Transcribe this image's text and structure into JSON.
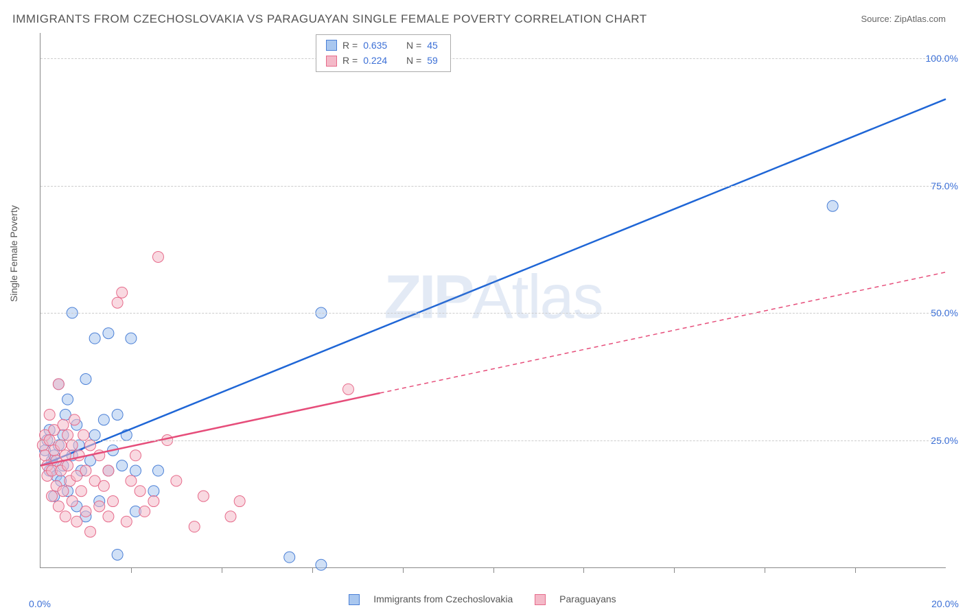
{
  "title": "IMMIGRANTS FROM CZECHOSLOVAKIA VS PARAGUAYAN SINGLE FEMALE POVERTY CORRELATION CHART",
  "source": "Source: ZipAtlas.com",
  "ylabel": "Single Female Poverty",
  "watermark_bold": "ZIP",
  "watermark_rest": "Atlas",
  "chart": {
    "type": "scatter",
    "background_color": "#ffffff",
    "grid_color": "#cccccc",
    "axis_color": "#888888",
    "tick_label_color": "#3b6fd6",
    "axis_label_color": "#555555",
    "xlim": [
      0,
      20
    ],
    "ylim": [
      0,
      105
    ],
    "xticks": [
      0,
      20
    ],
    "xtick_labels": [
      "0.0%",
      "20.0%"
    ],
    "xtick_minor": [
      2,
      4,
      6,
      8,
      10,
      12,
      14,
      16,
      18
    ],
    "yticks": [
      25,
      50,
      75,
      100
    ],
    "ytick_labels": [
      "25.0%",
      "50.0%",
      "75.0%",
      "100.0%"
    ],
    "marker_radius": 8,
    "marker_opacity": 0.55,
    "title_fontsize": 17,
    "label_fontsize": 14
  },
  "series": [
    {
      "name": "Immigrants from Czechoslovakia",
      "key": "czech",
      "fill_color": "#a9c7ef",
      "stroke_color": "#4a7fd6",
      "line_color": "#1f66d6",
      "line_width": 2.5,
      "R": "0.635",
      "N": "45",
      "trend": {
        "x1": 0,
        "y1": 20,
        "x2": 20,
        "y2": 92,
        "dash_after_x": 20
      },
      "points": [
        [
          0.1,
          23
        ],
        [
          0.15,
          25
        ],
        [
          0.2,
          19
        ],
        [
          0.2,
          27
        ],
        [
          0.25,
          21
        ],
        [
          0.3,
          22
        ],
        [
          0.3,
          14
        ],
        [
          0.35,
          18
        ],
        [
          0.4,
          24
        ],
        [
          0.4,
          36
        ],
        [
          0.45,
          17
        ],
        [
          0.5,
          26
        ],
        [
          0.5,
          20
        ],
        [
          0.55,
          30
        ],
        [
          0.6,
          33
        ],
        [
          0.6,
          15
        ],
        [
          0.7,
          22
        ],
        [
          0.7,
          50
        ],
        [
          0.8,
          28
        ],
        [
          0.8,
          12
        ],
        [
          0.85,
          24
        ],
        [
          0.9,
          19
        ],
        [
          1.0,
          10
        ],
        [
          1.0,
          37
        ],
        [
          1.1,
          21
        ],
        [
          1.2,
          45
        ],
        [
          1.2,
          26
        ],
        [
          1.3,
          13
        ],
        [
          1.4,
          29
        ],
        [
          1.5,
          46
        ],
        [
          1.5,
          19
        ],
        [
          1.6,
          23
        ],
        [
          1.7,
          30
        ],
        [
          1.7,
          2.5
        ],
        [
          1.8,
          20
        ],
        [
          1.9,
          26
        ],
        [
          2.0,
          45
        ],
        [
          2.1,
          19
        ],
        [
          2.1,
          11
        ],
        [
          2.5,
          15
        ],
        [
          2.6,
          19
        ],
        [
          5.5,
          2
        ],
        [
          6.2,
          50
        ],
        [
          6.2,
          0.5
        ],
        [
          17.5,
          71
        ]
      ]
    },
    {
      "name": "Paraguayans",
      "key": "para",
      "fill_color": "#f4b9c8",
      "stroke_color": "#e66a8a",
      "line_color": "#e64d7a",
      "line_width": 2.5,
      "R": "0.224",
      "N": "59",
      "trend": {
        "x1": 0,
        "y1": 20,
        "x2": 20,
        "y2": 58,
        "dash_after_x": 7.5
      },
      "points": [
        [
          0.05,
          24
        ],
        [
          0.1,
          22
        ],
        [
          0.1,
          26
        ],
        [
          0.15,
          20
        ],
        [
          0.15,
          18
        ],
        [
          0.2,
          25
        ],
        [
          0.2,
          30
        ],
        [
          0.25,
          19
        ],
        [
          0.25,
          14
        ],
        [
          0.3,
          23
        ],
        [
          0.3,
          27
        ],
        [
          0.35,
          16
        ],
        [
          0.35,
          21
        ],
        [
          0.4,
          36
        ],
        [
          0.4,
          12
        ],
        [
          0.45,
          24
        ],
        [
          0.45,
          19
        ],
        [
          0.5,
          28
        ],
        [
          0.5,
          15
        ],
        [
          0.55,
          22
        ],
        [
          0.55,
          10
        ],
        [
          0.6,
          26
        ],
        [
          0.6,
          20
        ],
        [
          0.65,
          17
        ],
        [
          0.7,
          24
        ],
        [
          0.7,
          13
        ],
        [
          0.75,
          29
        ],
        [
          0.8,
          18
        ],
        [
          0.8,
          9
        ],
        [
          0.85,
          22
        ],
        [
          0.9,
          15
        ],
        [
          0.95,
          26
        ],
        [
          1.0,
          19
        ],
        [
          1.0,
          11
        ],
        [
          1.1,
          24
        ],
        [
          1.1,
          7
        ],
        [
          1.2,
          17
        ],
        [
          1.3,
          12
        ],
        [
          1.3,
          22
        ],
        [
          1.4,
          16
        ],
        [
          1.5,
          10
        ],
        [
          1.5,
          19
        ],
        [
          1.6,
          13
        ],
        [
          1.7,
          52
        ],
        [
          1.8,
          54
        ],
        [
          1.9,
          9
        ],
        [
          2.0,
          17
        ],
        [
          2.1,
          22
        ],
        [
          2.2,
          15
        ],
        [
          2.3,
          11
        ],
        [
          2.5,
          13
        ],
        [
          2.6,
          61
        ],
        [
          2.8,
          25
        ],
        [
          3.0,
          17
        ],
        [
          3.4,
          8
        ],
        [
          3.6,
          14
        ],
        [
          4.2,
          10
        ],
        [
          4.4,
          13
        ],
        [
          6.8,
          35
        ]
      ]
    }
  ],
  "legend_top": {
    "R_label": "R =",
    "N_label": "N ="
  },
  "legend_bottom": {
    "czech": "Immigrants from Czechoslovakia",
    "para": "Paraguayans"
  }
}
